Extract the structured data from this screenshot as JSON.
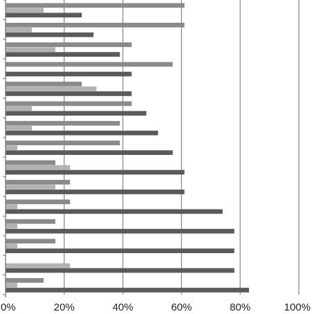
{
  "chart_data": {
    "type": "bar",
    "orientation": "horizontal",
    "x_ticks": [
      "0%",
      "20%",
      "40%",
      "60%",
      "80%",
      "100%"
    ],
    "xlim": [
      0,
      100
    ],
    "grid": "vertical",
    "legend": "none",
    "categories": [
      "",
      "",
      "",
      "",
      "",
      "",
      "",
      "",
      "",
      "",
      "",
      "",
      "",
      "",
      ""
    ],
    "series": [
      {
        "values": [
          61,
          61,
          43,
          57,
          26,
          43,
          39,
          39,
          17,
          22,
          22,
          17,
          17,
          0,
          13
        ]
      },
      {
        "values": [
          13,
          9,
          17,
          0,
          31,
          9,
          9,
          4,
          22,
          17,
          4,
          4,
          4,
          22,
          4
        ]
      },
      {
        "values": [
          26,
          30,
          39,
          43,
          43,
          48,
          52,
          57,
          61,
          61,
          74,
          78,
          78,
          78,
          83
        ]
      }
    ],
    "colors": [
      "#8a8a8a",
      "#b2b2b2",
      "#5a5a5a"
    ],
    "grid_color": "#8c8c8c",
    "axis_color": "#777777"
  }
}
